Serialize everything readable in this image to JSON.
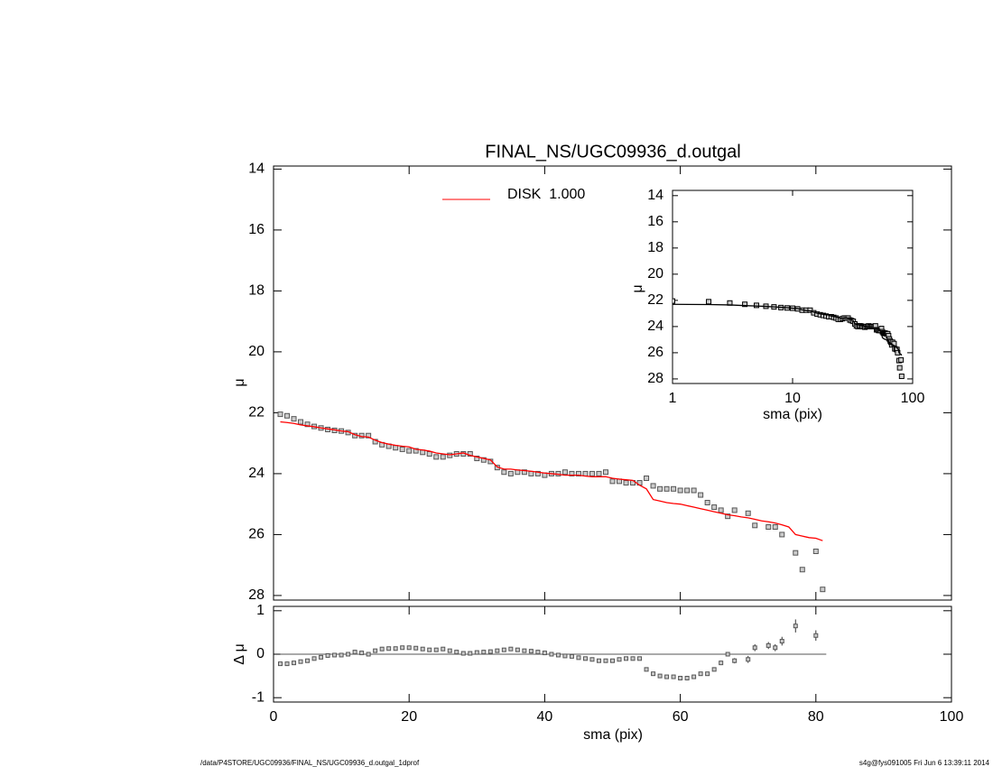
{
  "chart_data": [
    {
      "type": "scatter",
      "title": "FINAL_NS/UGC09936_d.outgal",
      "ylabel": "μ",
      "xlim": [
        0,
        100
      ],
      "ylim": [
        28.15,
        13.9
      ],
      "yticks": [
        14,
        16,
        18,
        20,
        22,
        24,
        26,
        28
      ],
      "x": [
        1,
        2,
        3,
        4,
        5,
        6,
        7,
        8,
        9,
        10,
        11,
        12,
        13,
        14,
        15,
        16,
        17,
        18,
        19,
        20,
        21,
        22,
        23,
        24,
        25,
        26,
        27,
        28,
        29,
        30,
        31,
        32,
        33,
        34,
        35,
        36,
        37,
        38,
        39,
        40,
        41,
        42,
        43,
        44,
        45,
        46,
        47,
        48,
        49,
        50,
        51,
        52,
        53,
        54,
        55,
        56,
        57,
        58,
        59,
        60,
        61,
        62,
        63,
        64,
        65,
        66,
        67,
        68,
        69,
        70,
        71,
        72,
        73,
        74,
        75,
        76,
        77,
        78,
        79,
        80,
        81
      ],
      "series": [
        {
          "color": "#555555",
          "marker": "square",
          "values": [
            22.05,
            22.1,
            22.2,
            22.3,
            22.38,
            22.45,
            22.5,
            22.55,
            22.58,
            22.6,
            22.65,
            22.75,
            22.75,
            22.75,
            22.95,
            23.05,
            23.1,
            23.15,
            23.2,
            23.25,
            23.25,
            23.3,
            23.35,
            23.45,
            23.45,
            23.4,
            23.35,
            23.35,
            23.35,
            23.5,
            23.55,
            23.6,
            23.8,
            23.95,
            24.0,
            23.95,
            23.95,
            24.0,
            24.0,
            24.05,
            24.0,
            24.0,
            23.95,
            24.0,
            24.0,
            24.0,
            24.0,
            24.0,
            23.95,
            24.25,
            24.25,
            24.3,
            24.3,
            24.3,
            24.15,
            24.4,
            24.5,
            24.5,
            24.5,
            24.55,
            24.55,
            24.55,
            24.7,
            24.95,
            25.1,
            25.2,
            25.4,
            25.2,
            null,
            25.3,
            25.7,
            null,
            25.75,
            25.75,
            26.0,
            null,
            26.6,
            27.15,
            null,
            26.55,
            27.8
          ]
        },
        {
          "name": "DISK  1.000",
          "color": "#ff0000",
          "marker": "line",
          "values": [
            22.3,
            22.32,
            22.35,
            22.4,
            22.43,
            22.46,
            22.5,
            22.53,
            22.56,
            22.6,
            22.62,
            22.72,
            22.78,
            22.8,
            22.9,
            22.98,
            23.03,
            23.07,
            23.1,
            23.12,
            23.2,
            23.22,
            23.26,
            23.32,
            23.35,
            23.38,
            23.35,
            23.32,
            23.4,
            23.45,
            23.5,
            23.55,
            23.78,
            23.85,
            23.85,
            23.88,
            23.9,
            23.92,
            23.95,
            23.98,
            24.0,
            24.02,
            24.05,
            24.05,
            24.05,
            24.08,
            24.1,
            24.1,
            24.1,
            24.15,
            24.18,
            24.2,
            24.22,
            24.38,
            24.5,
            24.85,
            24.9,
            24.95,
            24.98,
            25.0,
            25.05,
            25.1,
            25.15,
            25.2,
            25.25,
            25.3,
            25.35,
            25.38,
            25.42,
            25.45,
            25.5,
            25.55,
            25.58,
            25.62,
            25.68,
            25.75,
            26.0,
            26.05,
            26.1,
            26.12,
            26.2
          ]
        }
      ]
    },
    {
      "type": "residual",
      "xlabel": "sma (pix)",
      "ylabel": "Δ μ",
      "color": "#555555",
      "xlim": [
        0,
        100
      ],
      "xticks": [
        0,
        20,
        40,
        60,
        80,
        100
      ],
      "ylim": [
        -1.1,
        1.1
      ],
      "yticks": [
        -1,
        0,
        1
      ],
      "x": [
        1,
        2,
        3,
        4,
        5,
        6,
        7,
        8,
        9,
        10,
        11,
        12,
        13,
        14,
        15,
        16,
        17,
        18,
        19,
        20,
        21,
        22,
        23,
        24,
        25,
        26,
        27,
        28,
        29,
        30,
        31,
        32,
        33,
        34,
        35,
        36,
        37,
        38,
        39,
        40,
        41,
        42,
        43,
        44,
        45,
        46,
        47,
        48,
        49,
        50,
        51,
        52,
        53,
        54,
        55,
        56,
        57,
        58,
        59,
        60,
        61,
        62,
        63,
        64,
        65,
        66,
        67,
        68,
        69,
        70,
        71,
        72,
        73,
        74,
        75,
        76,
        77,
        78,
        79,
        80,
        81
      ],
      "values": [
        -0.22,
        -0.22,
        -0.2,
        -0.17,
        -0.15,
        -0.1,
        -0.07,
        -0.03,
        -0.02,
        -0.02,
        0,
        0.05,
        0.03,
        0,
        0.08,
        0.12,
        0.13,
        0.13,
        0.15,
        0.15,
        0.14,
        0.12,
        0.1,
        0.1,
        0.12,
        0.08,
        0.05,
        0.02,
        0.02,
        0.04,
        0.05,
        0.06,
        0.08,
        0.1,
        0.12,
        0.1,
        0.08,
        0.07,
        0.05,
        0.03,
        0,
        -0.02,
        -0.04,
        -0.05,
        -0.08,
        -0.1,
        -0.12,
        -0.15,
        -0.15,
        -0.15,
        -0.12,
        -0.1,
        -0.1,
        -0.1,
        -0.35,
        -0.45,
        -0.5,
        -0.52,
        -0.52,
        -0.55,
        -0.55,
        -0.52,
        -0.45,
        -0.45,
        -0.35,
        -0.2,
        0,
        -0.15,
        null,
        -0.12,
        0.15,
        null,
        0.2,
        0.15,
        0.3,
        null,
        0.65,
        null,
        null,
        0.43,
        null
      ],
      "errors": [
        0.02,
        0.02,
        0.02,
        0.02,
        0.02,
        0.02,
        0.02,
        0.02,
        0.02,
        0.02,
        0.02,
        0.02,
        0.02,
        0.02,
        0.02,
        0.02,
        0.02,
        0.02,
        0.02,
        0.02,
        0.02,
        0.02,
        0.02,
        0.02,
        0.02,
        0.02,
        0.02,
        0.02,
        0.02,
        0.02,
        0.02,
        0.02,
        0.02,
        0.02,
        0.02,
        0.02,
        0.02,
        0.02,
        0.02,
        0.02,
        0.02,
        0.02,
        0.02,
        0.02,
        0.02,
        0.02,
        0.02,
        0.02,
        0.02,
        0.02,
        0.02,
        0.02,
        0.02,
        0.02,
        0.03,
        0.03,
        0.03,
        0.03,
        0.03,
        0.03,
        0.03,
        0.03,
        0.04,
        0.04,
        0.04,
        0.05,
        0.05,
        0.06,
        null,
        0.08,
        0.08,
        null,
        0.08,
        0.08,
        0.1,
        null,
        0.15,
        null,
        null,
        0.12,
        null
      ]
    },
    {
      "type": "inset",
      "xlabel": "sma (pix)",
      "ylabel": "μ",
      "log_x": true,
      "color": "#000000",
      "xlim": [
        1,
        100
      ],
      "xticks": [
        1,
        10,
        100
      ],
      "ylim": [
        28.35,
        13.6
      ],
      "yticks": [
        14,
        16,
        18,
        20,
        22,
        24,
        26,
        28
      ]
    }
  ],
  "footer": {
    "left": "/data/P4STORE/UGC09936/FINAL_NS/UGC09936_d.outgal_1dprof",
    "right": "s4g@fys091005  Fri Jun  6 13:39:11 2014"
  }
}
